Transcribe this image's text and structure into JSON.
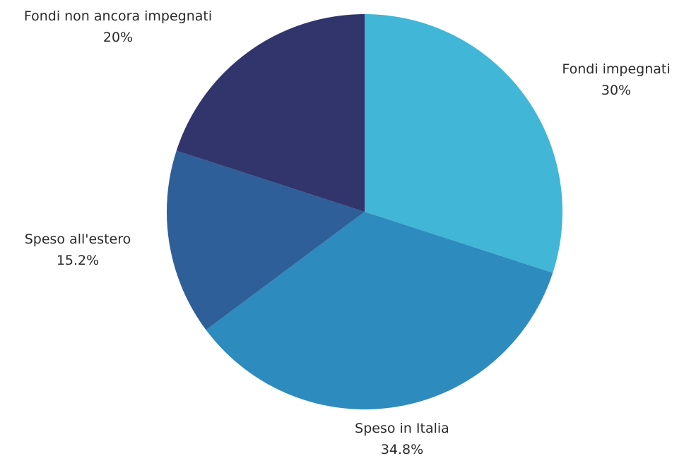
{
  "chart_data": {
    "type": "pie",
    "title": "",
    "start_angle_deg": 0,
    "direction": "clockwise",
    "slices": [
      {
        "name": "Fondi impegnati",
        "value": 30,
        "value_label": "30%",
        "color": "#41B6D6"
      },
      {
        "name": "Speso in Italia",
        "value": 34.8,
        "value_label": "34.8%",
        "color": "#2E8BBE"
      },
      {
        "name": "Speso all'estero",
        "value": 15.2,
        "value_label": "15.2%",
        "color": "#2F5F98"
      },
      {
        "name": "Fondi non ancora impegnati",
        "value": 20,
        "value_label": "20%",
        "color": "#32346C"
      }
    ]
  }
}
